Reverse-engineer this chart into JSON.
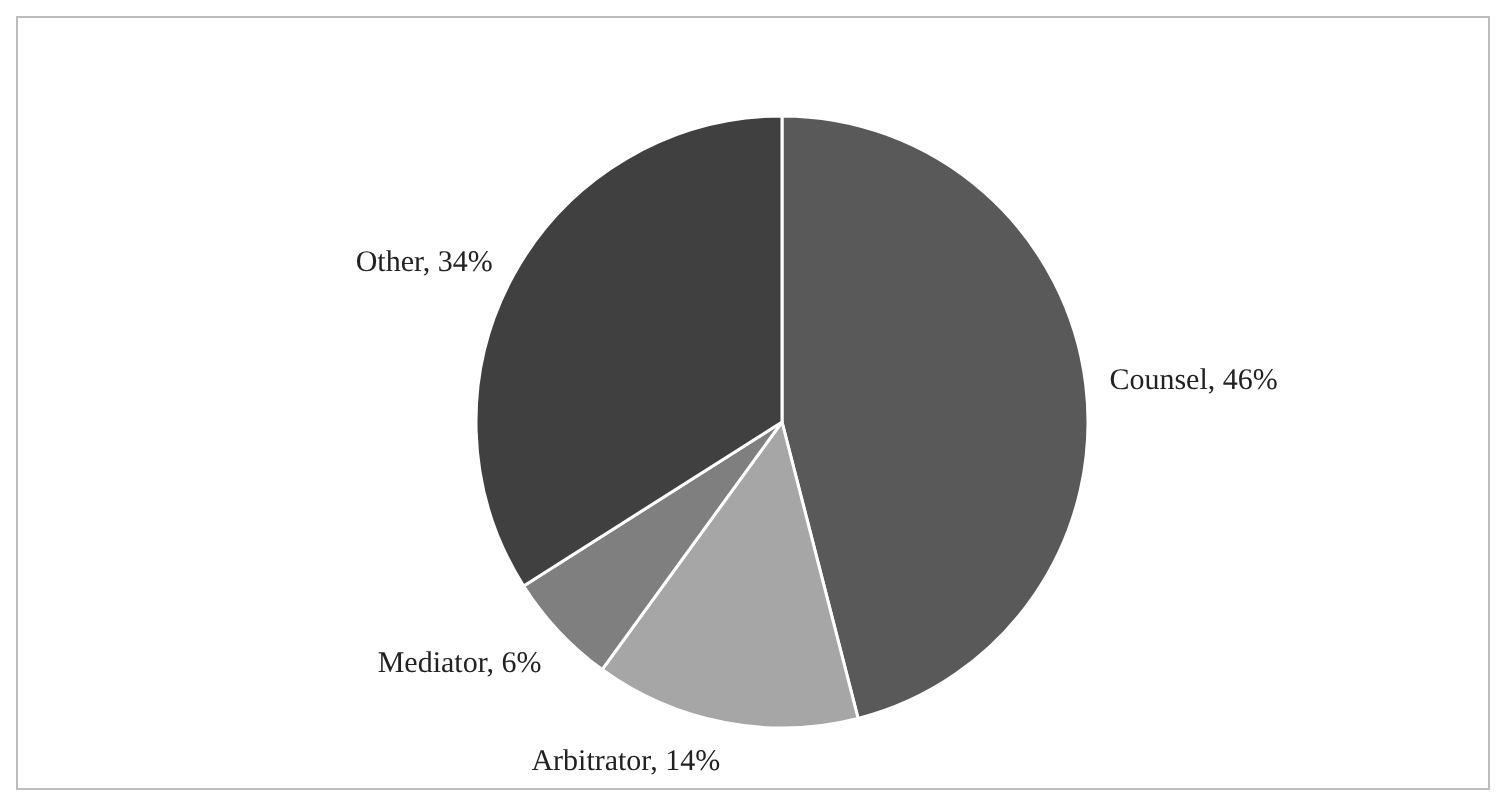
{
  "chart_data": {
    "type": "pie",
    "categories": [
      "Counsel",
      "Arbitrator",
      "Mediator",
      "Other"
    ],
    "values": [
      46,
      14,
      6,
      34
    ],
    "colors": [
      "#595959",
      "#a6a6a6",
      "#7f7f7f",
      "#404040"
    ],
    "value_labels": [
      "46%",
      "14%",
      "6%",
      "34%"
    ]
  }
}
